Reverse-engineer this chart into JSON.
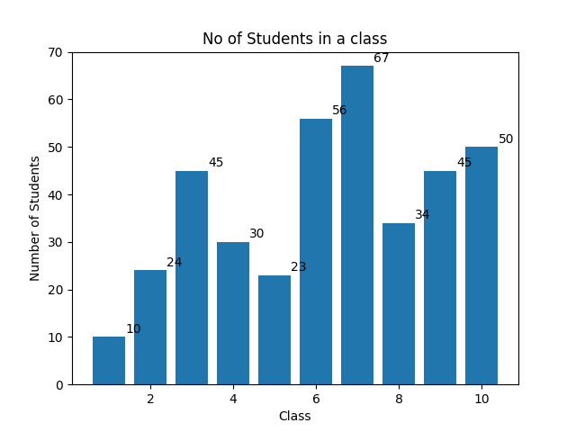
{
  "x_values": [
    1,
    2,
    3,
    4,
    5,
    6,
    7,
    8,
    9,
    10
  ],
  "y_values": [
    10,
    24,
    45,
    30,
    23,
    56,
    67,
    34,
    45,
    50
  ],
  "bar_color": "#2176ae",
  "title": "No of Students in a class",
  "xlabel": "Class",
  "ylabel": "Number of Students",
  "ylim": [
    0,
    70
  ],
  "title_fontsize": 12,
  "label_fontsize": 10,
  "bar_width": 0.8
}
